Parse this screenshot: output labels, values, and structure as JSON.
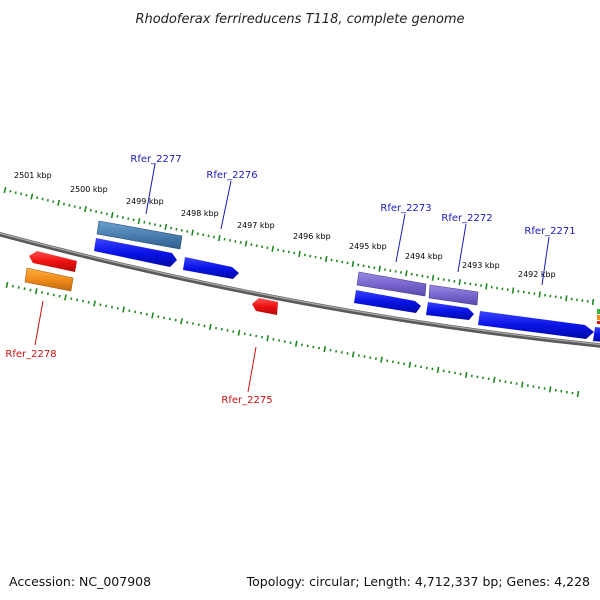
{
  "title": "Rhodoferax ferrireducens T118, complete genome",
  "footer": {
    "accession": "Accession: NC_007908",
    "summary": "Topology: circular; Length: 4,712,337 bp; Genes: 4,228"
  },
  "colors": {
    "backbone": "#777777",
    "ticks": "#1e8a1e",
    "label_forward": "#1a1ab8",
    "label_reverse": "#cc1111",
    "cds_forward": "#0a14e6",
    "cds_reverse": "#ee1111",
    "gene_forward": "#4f86b8",
    "gene_reverse": "#f08c1a",
    "gene_forward_purple": "#7a66d0"
  },
  "coordinates": {
    "kbp_labels": [
      "2501 kbp",
      "2500 kbp",
      "2499 kbp",
      "2498 kbp",
      "2497 kbp",
      "2496 kbp",
      "2495 kbp",
      "2494 kbp",
      "2493 kbp",
      "2492 kbp"
    ]
  },
  "genes": [
    {
      "label": "Rfer_2277",
      "strand": "forward"
    },
    {
      "label": "Rfer_2276",
      "strand": "forward"
    },
    {
      "label": "Rfer_2273",
      "strand": "forward"
    },
    {
      "label": "Rfer_2272",
      "strand": "forward"
    },
    {
      "label": "Rfer_2271",
      "strand": "forward"
    },
    {
      "label": "Rfer_2278",
      "strand": "reverse"
    },
    {
      "label": "Rfer_2275",
      "strand": "reverse"
    }
  ]
}
